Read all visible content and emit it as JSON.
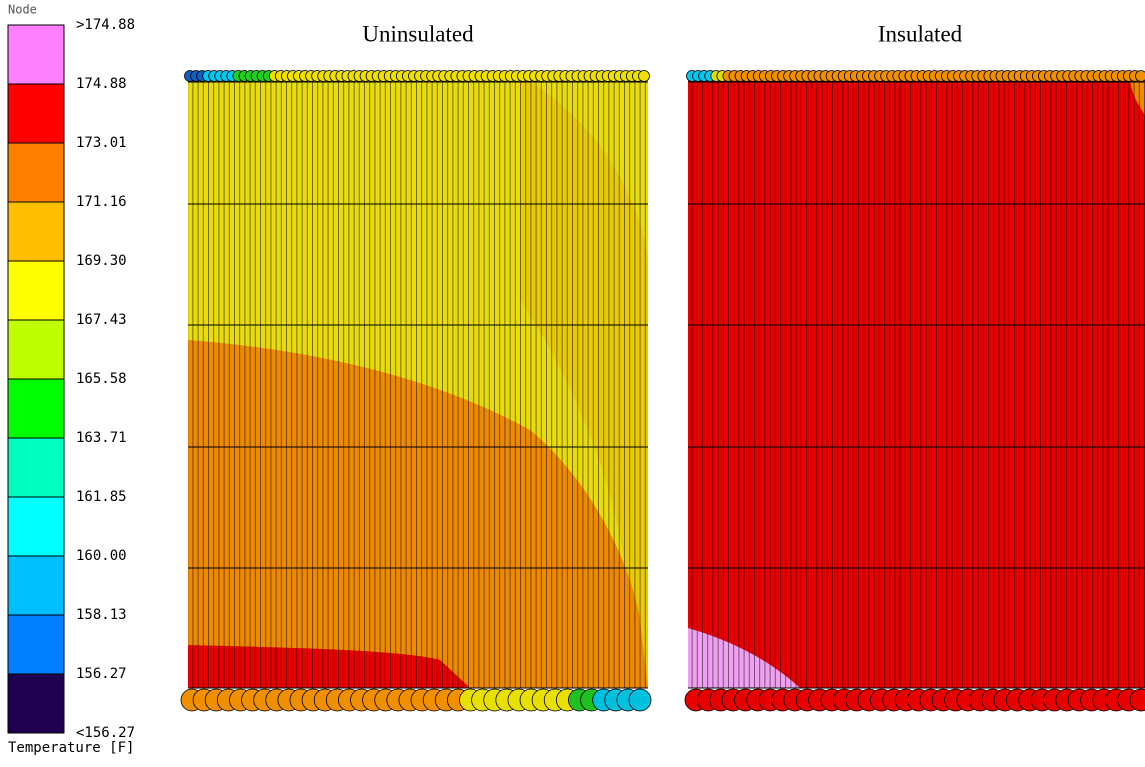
{
  "legend": {
    "header": "Node",
    "labels": [
      ">174.88",
      "174.88",
      "173.01",
      "171.16",
      "169.30",
      "167.43",
      "165.58",
      "163.71",
      "161.85",
      "160.00",
      "158.13",
      "156.27",
      "<156.27"
    ],
    "colors": [
      "#ff80ff",
      "#ff0000",
      "#ff8000",
      "#ffbf00",
      "#ffff00",
      "#bfff00",
      "#00ff00",
      "#00ffbf",
      "#00ffff",
      "#00bfff",
      "#0080ff",
      "#1f0050"
    ],
    "caption": "Temperature [F]"
  },
  "panels": [
    {
      "title": "Uninsulated"
    },
    {
      "title": "Insulated"
    }
  ]
}
